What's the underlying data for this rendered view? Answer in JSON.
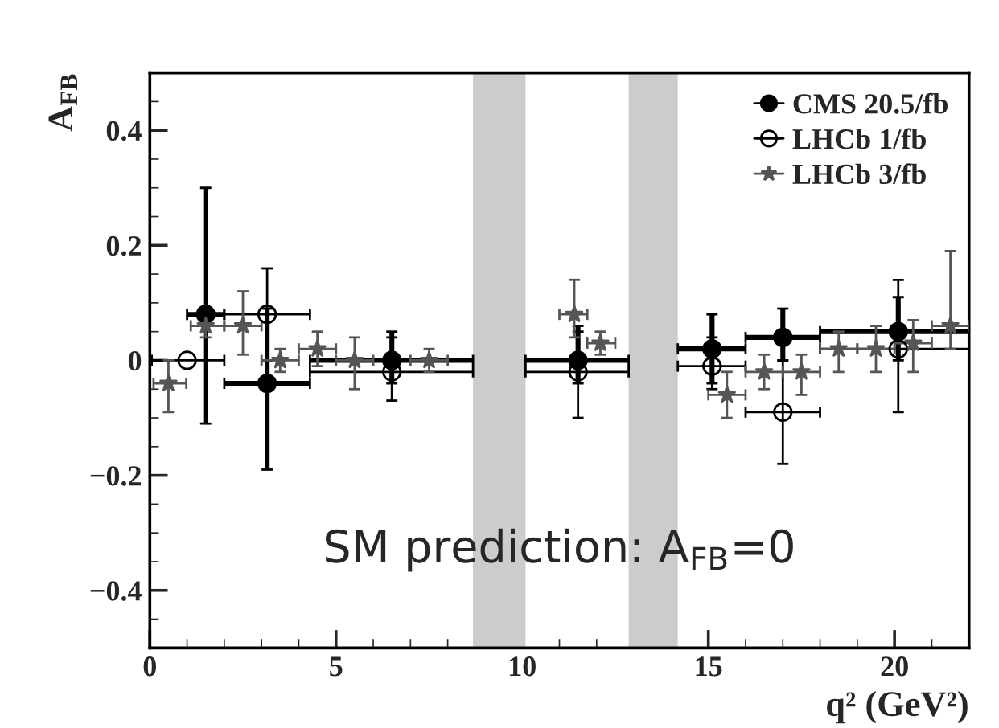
{
  "chart_data": {
    "type": "scatter",
    "xlabel": "q² (GeV²)",
    "ylabel": "A$_{FB}$",
    "xlim": [
      0,
      22
    ],
    "ylim": [
      -0.5,
      0.5
    ],
    "xticks": [
      0,
      5,
      10,
      15,
      20
    ],
    "yticks": [
      {
        "value": -0.4,
        "label": "−0.4"
      },
      {
        "value": -0.2,
        "label": "−0.2"
      },
      0,
      0.2,
      0.4
    ],
    "legend": "top right",
    "grid": false,
    "bands": [
      {
        "axis": "x",
        "from": 8.68,
        "to": 10.09,
        "color": "#cccccc"
      },
      {
        "axis": "x",
        "from": 12.86,
        "to": 14.18,
        "color": "#cccccc"
      }
    ],
    "annotations": [
      "SM prediction: A$_{FB}$=0"
    ],
    "series": [
      {
        "name": "CMS 20.5/fb",
        "color": "#000000",
        "marker": "circle",
        "x": [
          1.5,
          3.15,
          6.5,
          11.5,
          15.1,
          17.0,
          20.1
        ],
        "values": [
          0.08,
          -0.04,
          0.0,
          0.0,
          0.02,
          0.04,
          0.05
        ],
        "errors": [
          [
            -0.11,
            0.3
          ],
          [
            -0.19,
            0.09
          ],
          [
            -0.04,
            0.05
          ],
          [
            -0.04,
            0.06
          ],
          [
            -0.04,
            0.08
          ],
          [
            0.0,
            0.09
          ],
          [
            0.0,
            0.11
          ]
        ],
        "xerrors": [
          [
            1,
            2
          ],
          [
            2,
            4.3
          ],
          [
            4.3,
            8.68
          ],
          [
            10.09,
            12.86
          ],
          [
            14.18,
            16
          ],
          [
            16,
            18
          ],
          [
            18,
            22
          ]
        ]
      },
      {
        "name": "LHCb 1/fb",
        "color": "#000000",
        "marker": "open circle",
        "x": [
          1.0,
          3.15,
          6.5,
          11.5,
          15.1,
          17.0,
          20.1
        ],
        "values": [
          0.0,
          0.08,
          -0.02,
          -0.02,
          -0.01,
          -0.09,
          0.02
        ],
        "errors": [
          null,
          [
            0.0,
            0.16
          ],
          [
            -0.07,
            0.04
          ],
          [
            -0.1,
            0.05
          ],
          [
            -0.05,
            0.04
          ],
          [
            -0.18,
            0.0
          ],
          [
            -0.09,
            0.14
          ]
        ],
        "xerrors": [
          [
            0.05,
            2
          ],
          [
            2,
            4.3
          ],
          [
            4.3,
            8.68
          ],
          [
            10.09,
            12.86
          ],
          [
            14.18,
            16
          ],
          [
            16,
            18
          ],
          [
            18,
            22
          ]
        ]
      },
      {
        "name": "LHCb 3/fb",
        "color": "#555555",
        "marker": "star",
        "x": [
          0.5,
          1.5,
          2.5,
          3.5,
          4.5,
          5.5,
          7.5,
          11.4,
          12.1,
          15.5,
          16.5,
          17.5,
          18.5,
          19.5,
          20.5,
          21.5
        ],
        "values": [
          -0.04,
          0.06,
          0.06,
          0.0,
          0.02,
          0.0,
          0.0,
          0.08,
          0.03,
          -0.06,
          -0.02,
          -0.02,
          0.02,
          0.02,
          0.03,
          0.06
        ],
        "errors": [
          [
            -0.09,
            0.0
          ],
          [
            0.04,
            0.08
          ],
          [
            0.01,
            0.12
          ],
          [
            -0.02,
            0.02
          ],
          [
            -0.01,
            0.05
          ],
          [
            -0.05,
            0.04
          ],
          [
            -0.02,
            0.02
          ],
          [
            0.04,
            0.14
          ],
          [
            0.01,
            0.05
          ],
          [
            -0.1,
            -0.02
          ],
          [
            -0.05,
            0.01
          ],
          [
            -0.06,
            0.01
          ],
          [
            -0.02,
            0.05
          ],
          [
            -0.02,
            0.06
          ],
          [
            -0.02,
            0.07
          ],
          [
            0.02,
            0.19
          ]
        ],
        "xerrors": [
          [
            0.1,
            0.98
          ],
          [
            1.1,
            2
          ],
          [
            2,
            3
          ],
          [
            3,
            4
          ],
          [
            4,
            5
          ],
          [
            5,
            6
          ],
          [
            7,
            8
          ],
          [
            11,
            11.75
          ],
          [
            11.75,
            12.5
          ],
          [
            15,
            16
          ],
          [
            16,
            17
          ],
          [
            17,
            18
          ],
          [
            18,
            19
          ],
          [
            19,
            20
          ],
          [
            20,
            21
          ],
          [
            21,
            22
          ]
        ]
      }
    ]
  }
}
